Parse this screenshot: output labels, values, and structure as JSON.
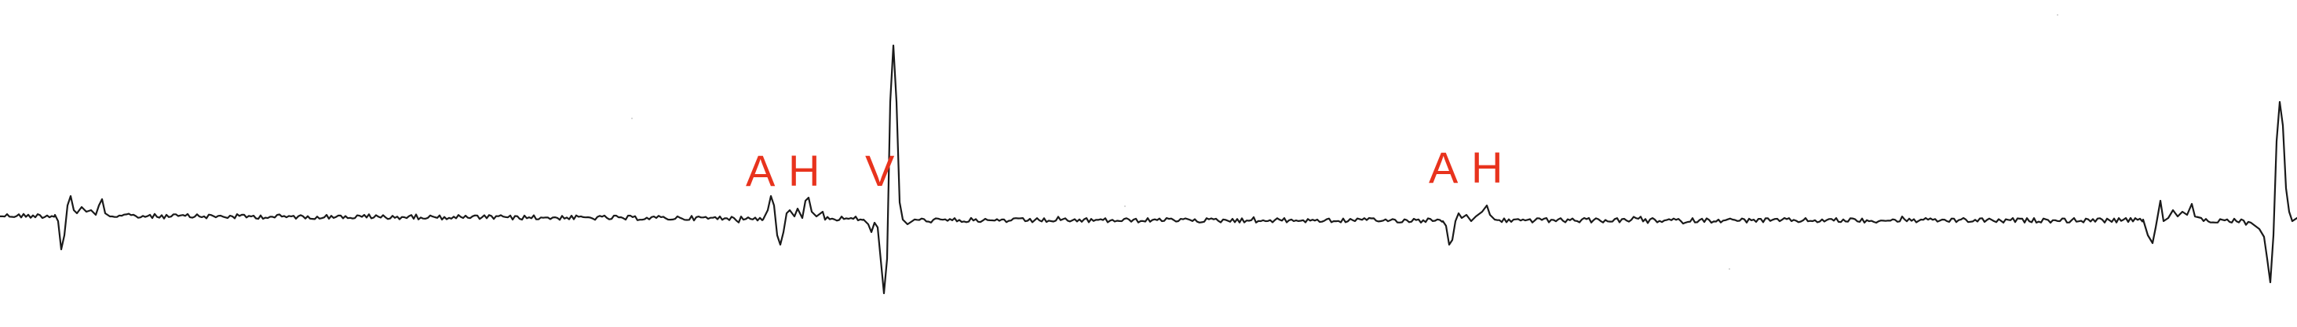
{
  "recording": {
    "trace_color": "#1a1a1a",
    "label_color": "#e8331d",
    "labels": {
      "beat1_A": "A",
      "beat1_H": "H",
      "beat1_V": "V",
      "beat2_A": "A",
      "beat2_H": "H"
    }
  }
}
